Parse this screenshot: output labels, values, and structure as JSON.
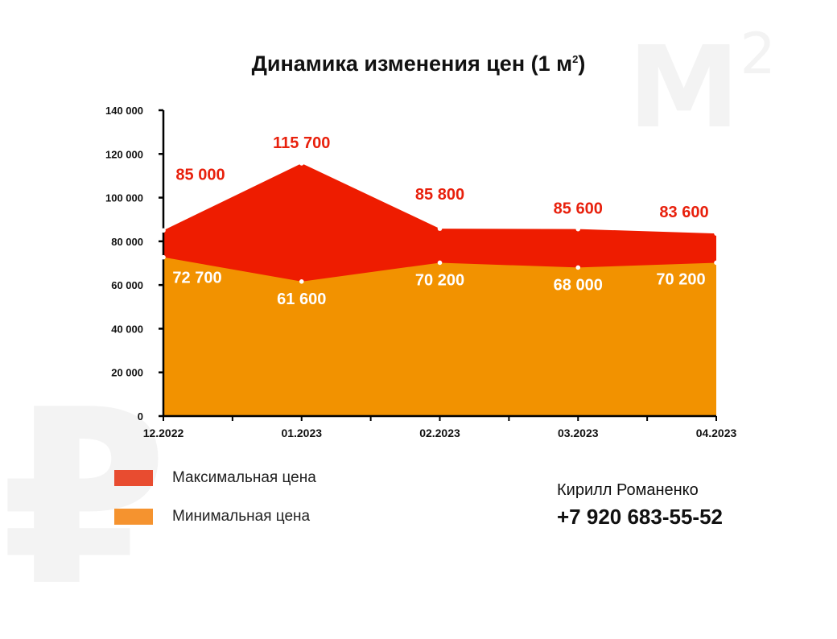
{
  "title": "Динамика изменения цен (1 м",
  "title_sup": "2",
  "watermark_unit": "М",
  "watermark_sup": "2",
  "watermark_currency": "₽",
  "legend": [
    {
      "label": "Максимальная цена",
      "color": "#e84c30"
    },
    {
      "label": "Минимальная цена",
      "color": "#f5932f"
    }
  ],
  "contact": {
    "name": "Кирилл Романенко",
    "phone": "+7 920 683-55-52"
  },
  "chart_data": {
    "type": "area",
    "x": [
      "12.2022",
      "01.2023",
      "02.2023",
      "03.2023",
      "04.2023"
    ],
    "ylim": [
      0,
      140000
    ],
    "yticks": [
      0,
      20000,
      40000,
      60000,
      80000,
      100000,
      120000,
      140000
    ],
    "ytick_labels": [
      "0",
      "20 000",
      "40 000",
      "60 000",
      "80 000",
      "100 000",
      "120 000",
      "140 000"
    ],
    "series": [
      {
        "name": "Максимальная цена",
        "values": [
          85000,
          115700,
          85800,
          85600,
          83600
        ],
        "labels": [
          "85 000",
          "115 700",
          "85 800",
          "85 600",
          "83 600"
        ],
        "color": "#ee1c00",
        "label_color": "#e8200c"
      },
      {
        "name": "Минимальная цена",
        "values": [
          72700,
          61600,
          70200,
          68000,
          70200
        ],
        "labels": [
          "72 700",
          "61 600",
          "70 200",
          "68 000",
          "70 200"
        ],
        "color": "#f29200",
        "label_color": "#ffffff"
      }
    ]
  }
}
